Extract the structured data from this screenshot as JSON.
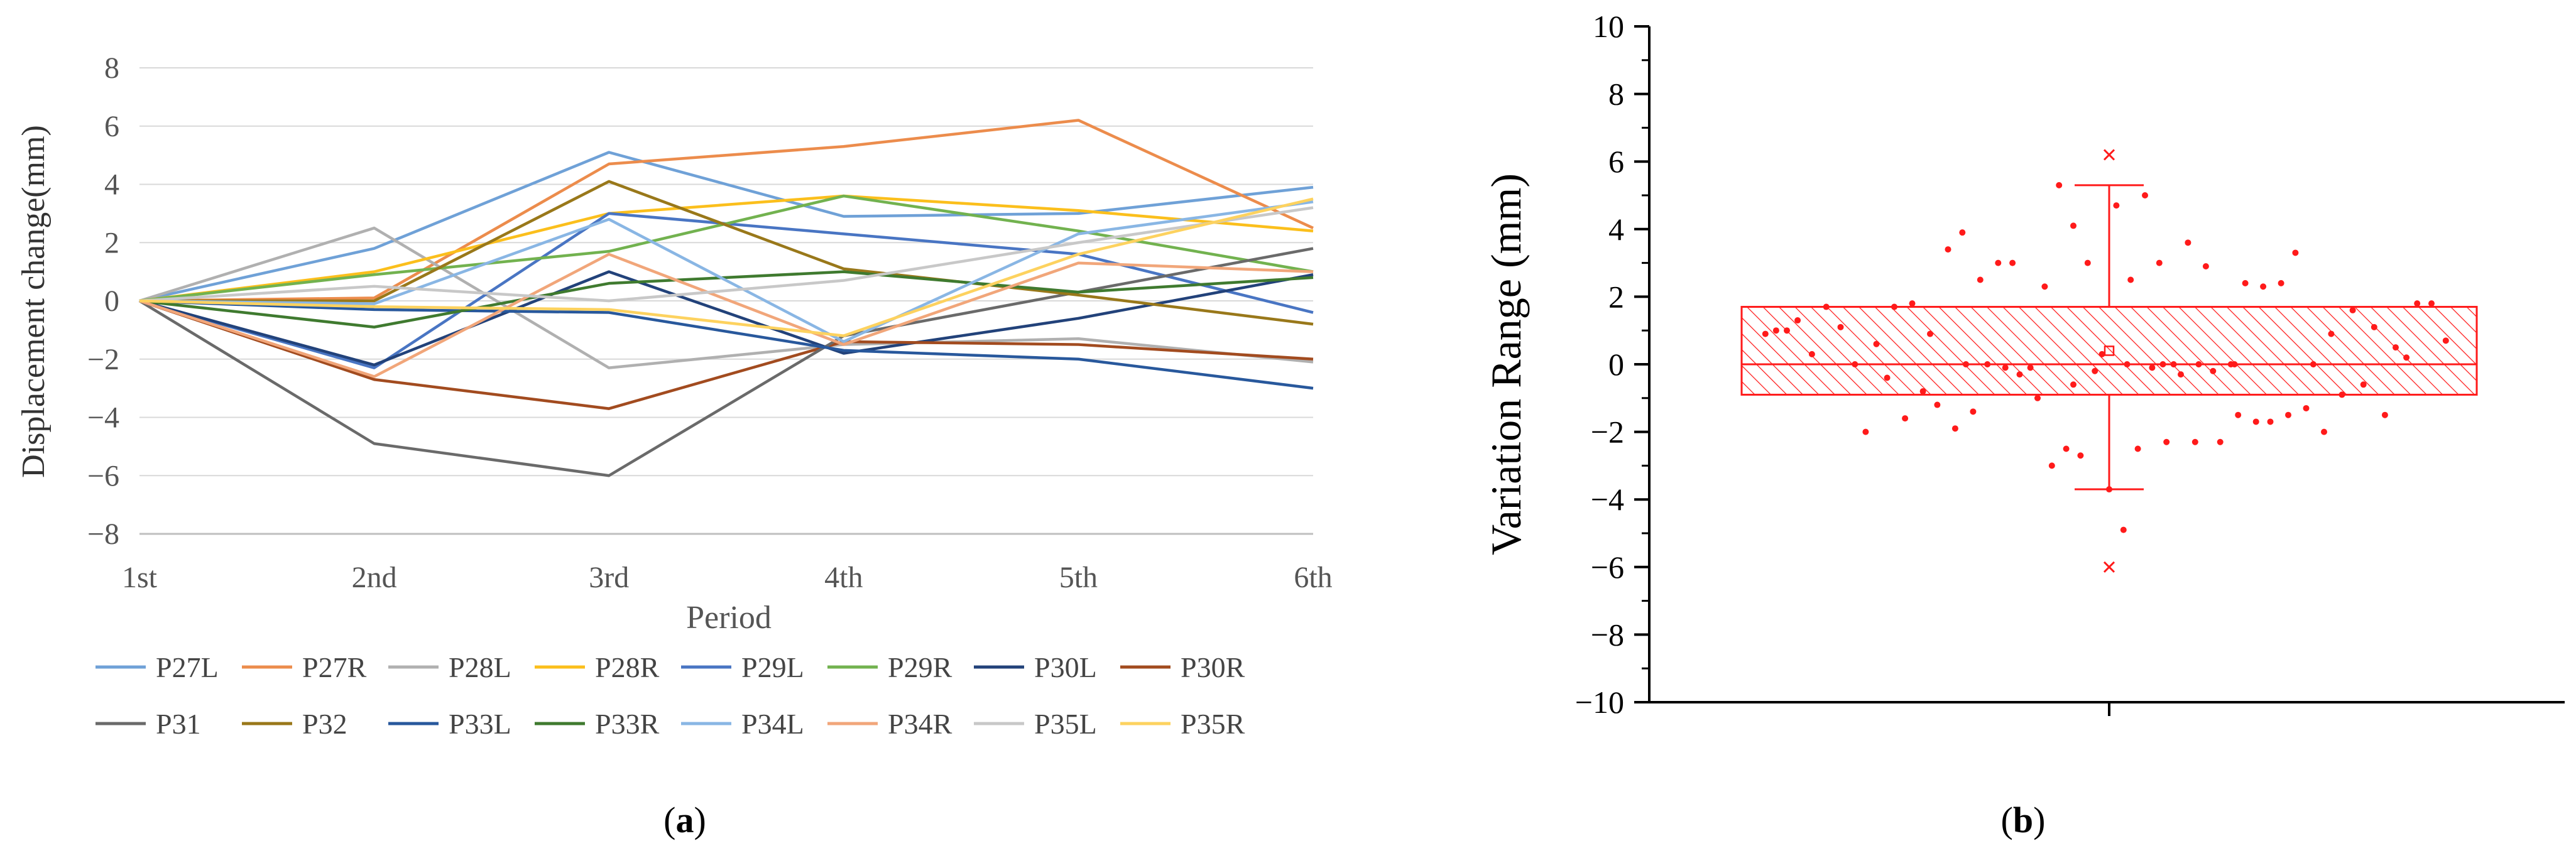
{
  "panels": {
    "a_label": "a",
    "b_label": "b"
  },
  "chart_data": [
    {
      "type": "line",
      "ylabel": "Displacement change(mm)",
      "xlabel": "Period",
      "categories": [
        "1st",
        "2nd",
        "3rd",
        "4th",
        "5th",
        "6th"
      ],
      "ylim": [
        -8,
        8
      ],
      "yticks": [
        -8,
        -6,
        -4,
        -2,
        0,
        2,
        4,
        6,
        8
      ],
      "grid": true,
      "legend_position": "bottom",
      "series": [
        {
          "name": "P27L",
          "color": "#6fa1d7",
          "values": [
            0,
            1.8,
            5.1,
            2.9,
            3.0,
            3.9
          ]
        },
        {
          "name": "P27R",
          "color": "#ec8c4c",
          "values": [
            0,
            0.1,
            4.7,
            5.3,
            6.2,
            2.5
          ]
        },
        {
          "name": "P28L",
          "color": "#b0b0b0",
          "values": [
            0,
            2.5,
            -2.3,
            -1.5,
            -1.3,
            -2.1
          ]
        },
        {
          "name": "P28R",
          "color": "#fbbf1c",
          "values": [
            0,
            1.0,
            3.0,
            3.6,
            3.1,
            2.4
          ]
        },
        {
          "name": "P29L",
          "color": "#4975c3",
          "values": [
            0,
            -2.3,
            3.0,
            2.3,
            1.6,
            -0.4
          ]
        },
        {
          "name": "P29R",
          "color": "#72b24f",
          "values": [
            0,
            0.9,
            1.7,
            3.6,
            2.4,
            1.0
          ]
        },
        {
          "name": "P30L",
          "color": "#22427a",
          "values": [
            0,
            -2.2,
            1.0,
            -1.8,
            -0.6,
            0.9
          ]
        },
        {
          "name": "P30R",
          "color": "#a24b1f",
          "values": [
            0,
            -2.7,
            -3.7,
            -1.4,
            -1.5,
            -2.0
          ]
        },
        {
          "name": "P31",
          "color": "#6a6a6a",
          "values": [
            0,
            -4.9,
            -6.0,
            -1.2,
            0.3,
            1.8
          ]
        },
        {
          "name": "P32",
          "color": "#99781a",
          "values": [
            0,
            0.0,
            4.1,
            1.1,
            0.2,
            -0.8
          ]
        },
        {
          "name": "P33L",
          "color": "#28589c",
          "values": [
            0,
            -0.3,
            -0.4,
            -1.7,
            -2.0,
            -3.0
          ]
        },
        {
          "name": "P33R",
          "color": "#3f7a2f",
          "values": [
            0,
            -0.9,
            0.6,
            1.0,
            0.3,
            0.8
          ]
        },
        {
          "name": "P34L",
          "color": "#89b6e4",
          "values": [
            0,
            -0.1,
            2.8,
            -1.4,
            2.3,
            3.4
          ]
        },
        {
          "name": "P34R",
          "color": "#f1a67a",
          "values": [
            0,
            -2.6,
            1.6,
            -1.5,
            1.3,
            1.0
          ]
        },
        {
          "name": "P35L",
          "color": "#c8c8c8",
          "values": [
            0,
            0.5,
            0.0,
            0.7,
            2.0,
            3.2
          ]
        },
        {
          "name": "P35R",
          "color": "#fdd25f",
          "values": [
            0,
            -0.2,
            -0.3,
            -1.2,
            1.6,
            3.5
          ]
        }
      ]
    },
    {
      "type": "box",
      "ylabel": "Variation Range (mm)",
      "ylim": [
        -10,
        10
      ],
      "yticks": [
        -10,
        -8,
        -6,
        -4,
        -2,
        0,
        2,
        4,
        6,
        8,
        10
      ],
      "ytick_labels": [
        "−10",
        "−8",
        "−6",
        "−4",
        "−2",
        "0",
        "2",
        "4",
        "6",
        "8",
        "10"
      ],
      "color": "#ff1a1a",
      "box": {
        "q1": -0.9,
        "median": 0.0,
        "q3": 1.7,
        "whisker_low": -3.7,
        "whisker_high": 5.3,
        "mean": 0.4
      },
      "outliers": [
        6.2,
        -6.0
      ],
      "points": [
        [
          -0.96,
          0.9
        ],
        [
          -0.93,
          1.0
        ],
        [
          -0.9,
          1.0
        ],
        [
          -0.87,
          1.3
        ],
        [
          -0.83,
          0.3
        ],
        [
          -0.79,
          1.7
        ],
        [
          -0.75,
          1.1
        ],
        [
          -0.71,
          0.0
        ],
        [
          -0.68,
          -2.0
        ],
        [
          -0.65,
          0.6
        ],
        [
          -0.62,
          -0.4
        ],
        [
          -0.6,
          1.7
        ],
        [
          -0.57,
          -1.6
        ],
        [
          -0.55,
          1.8
        ],
        [
          -0.52,
          -0.8
        ],
        [
          -0.5,
          0.9
        ],
        [
          -0.48,
          -1.2
        ],
        [
          -0.45,
          3.4
        ],
        [
          -0.43,
          -1.9
        ],
        [
          -0.41,
          3.9
        ],
        [
          -0.38,
          -1.4
        ],
        [
          -0.36,
          2.5
        ],
        [
          -0.34,
          0.0
        ],
        [
          -0.31,
          3.0
        ],
        [
          -0.29,
          -0.1
        ],
        [
          -0.27,
          3.0
        ],
        [
          -0.25,
          -0.3
        ],
        [
          -0.22,
          -0.1
        ],
        [
          -0.2,
          -1.0
        ],
        [
          -0.18,
          2.3
        ],
        [
          -0.16,
          -3.0
        ],
        [
          -0.14,
          5.3
        ],
        [
          -0.12,
          -2.5
        ],
        [
          -0.1,
          4.1
        ],
        [
          -0.08,
          -2.7
        ],
        [
          -0.06,
          3.0
        ],
        [
          -0.04,
          -0.2
        ],
        [
          -0.02,
          0.3
        ],
        [
          0.0,
          -3.7
        ],
        [
          0.02,
          4.7
        ],
        [
          0.04,
          -4.9
        ],
        [
          0.06,
          2.5
        ],
        [
          0.08,
          -2.5
        ],
        [
          0.1,
          5.0
        ],
        [
          0.12,
          -0.1
        ],
        [
          0.14,
          3.0
        ],
        [
          0.16,
          -2.3
        ],
        [
          0.18,
          0.0
        ],
        [
          0.2,
          -0.3
        ],
        [
          0.22,
          3.6
        ],
        [
          0.24,
          -2.3
        ],
        [
          0.27,
          2.9
        ],
        [
          0.29,
          -0.2
        ],
        [
          0.31,
          -2.3
        ],
        [
          0.34,
          0.0
        ],
        [
          0.36,
          -1.5
        ],
        [
          0.38,
          2.4
        ],
        [
          0.41,
          -1.7
        ],
        [
          0.43,
          2.3
        ],
        [
          0.45,
          -1.7
        ],
        [
          0.48,
          2.4
        ],
        [
          0.5,
          -1.5
        ],
        [
          0.52,
          3.3
        ],
        [
          0.55,
          -1.3
        ],
        [
          0.57,
          0.0
        ],
        [
          0.6,
          -2.0
        ],
        [
          0.62,
          0.9
        ],
        [
          0.65,
          -0.9
        ],
        [
          0.68,
          1.6
        ],
        [
          0.71,
          -0.6
        ],
        [
          0.74,
          1.1
        ],
        [
          0.77,
          -1.5
        ],
        [
          0.8,
          0.5
        ],
        [
          0.83,
          0.2
        ],
        [
          0.86,
          1.8
        ],
        [
          0.9,
          1.8
        ],
        [
          0.94,
          0.7
        ],
        [
          -0.4,
          0.0
        ],
        [
          0.05,
          0.0
        ],
        [
          0.25,
          0.0
        ],
        [
          -0.1,
          -0.6
        ],
        [
          0.15,
          0.0
        ],
        [
          0.35,
          0.0
        ]
      ]
    }
  ]
}
